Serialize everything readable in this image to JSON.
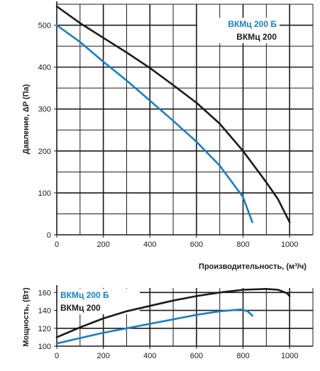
{
  "chart_data": [
    {
      "type": "line",
      "ylabel": "Давление, ΔP (Па)",
      "xlabel": "Производительность, (м³/ч)",
      "xlim": [
        0,
        1100
      ],
      "ylim": [
        0,
        550
      ],
      "x_ticks": [
        0,
        200,
        400,
        600,
        800,
        1000
      ],
      "y_ticks": [
        0,
        100,
        200,
        300,
        400,
        500
      ],
      "grid": true,
      "legend_position": "top-right",
      "series": [
        {
          "name": "ВКМц 200 Б",
          "color": "#1a7ec4",
          "points": [
            [
              0,
              500
            ],
            [
              100,
              460
            ],
            [
              200,
              413
            ],
            [
              300,
              368
            ],
            [
              400,
              320
            ],
            [
              500,
              272
            ],
            [
              600,
              222
            ],
            [
              700,
              165
            ],
            [
              800,
              90
            ],
            [
              840,
              30
            ]
          ]
        },
        {
          "name": "ВКМц 200",
          "color": "#1a1a1a",
          "points": [
            [
              0,
              545
            ],
            [
              100,
              505
            ],
            [
              200,
              470
            ],
            [
              300,
              435
            ],
            [
              400,
              398
            ],
            [
              500,
              357
            ],
            [
              600,
              315
            ],
            [
              700,
              265
            ],
            [
              800,
              200
            ],
            [
              900,
              125
            ],
            [
              950,
              85
            ],
            [
              1000,
              30
            ]
          ]
        }
      ]
    },
    {
      "type": "line",
      "ylabel": "Мощность, (Вт)",
      "xlim": [
        0,
        1100
      ],
      "ylim": [
        100,
        165
      ],
      "x_ticks": [
        0,
        200,
        400,
        600,
        800,
        1000
      ],
      "y_ticks": [
        100,
        120,
        140,
        160
      ],
      "grid": true,
      "legend_position": "top-left",
      "series": [
        {
          "name": "ВКМц 200 Б",
          "color": "#1a7ec4",
          "points": [
            [
              0,
              103
            ],
            [
              100,
              109
            ],
            [
              200,
              115
            ],
            [
              300,
              120
            ],
            [
              400,
              125
            ],
            [
              500,
              130
            ],
            [
              600,
              135
            ],
            [
              700,
              139
            ],
            [
              790,
              141
            ],
            [
              820,
              139
            ],
            [
              840,
              134
            ]
          ]
        },
        {
          "name": "ВКМц 200",
          "color": "#1a1a1a",
          "points": [
            [
              0,
              110
            ],
            [
              100,
              121
            ],
            [
              200,
              131
            ],
            [
              300,
              139
            ],
            [
              400,
              145
            ],
            [
              500,
              151
            ],
            [
              600,
              156
            ],
            [
              700,
              160
            ],
            [
              800,
              163
            ],
            [
              900,
              164
            ],
            [
              950,
              163
            ],
            [
              990,
              159
            ],
            [
              1000,
              156
            ]
          ]
        }
      ]
    }
  ]
}
